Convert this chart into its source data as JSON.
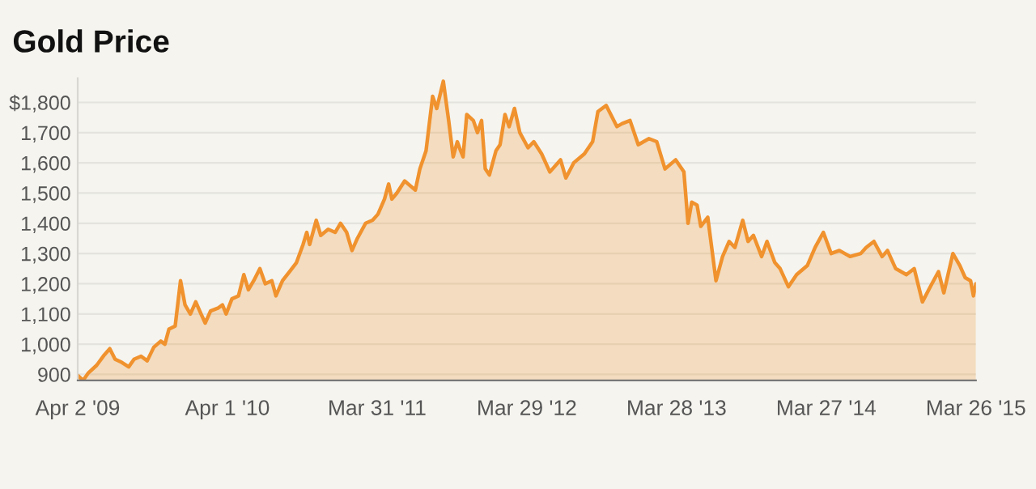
{
  "chart_data": {
    "type": "area",
    "title": "Gold Price",
    "x": [
      "2009-04-02",
      "2009-04-15",
      "2009-04-28",
      "2009-05-18",
      "2009-06-06",
      "2009-06-19",
      "2009-07-02",
      "2009-07-18",
      "2009-08-04",
      "2009-08-17",
      "2009-09-03",
      "2009-09-18",
      "2009-10-04",
      "2009-10-21",
      "2009-10-31",
      "2009-11-10",
      "2009-11-25",
      "2009-12-08",
      "2009-12-19",
      "2010-01-01",
      "2010-01-14",
      "2010-01-27",
      "2010-02-06",
      "2010-02-19",
      "2010-03-10",
      "2010-03-20",
      "2010-03-29",
      "2010-04-12",
      "2010-04-28",
      "2010-05-11",
      "2010-05-22",
      "2010-06-04",
      "2010-06-19",
      "2010-07-02",
      "2010-07-18",
      "2010-07-28",
      "2010-08-13",
      "2010-08-30",
      "2010-09-16",
      "2010-10-02",
      "2010-10-11",
      "2010-10-18",
      "2010-11-03",
      "2010-11-14",
      "2010-12-02",
      "2010-12-19",
      "2011-01-01",
      "2011-01-16",
      "2011-01-29",
      "2011-02-11",
      "2011-03-03",
      "2011-03-20",
      "2011-04-02",
      "2011-04-18",
      "2011-04-28",
      "2011-05-06",
      "2011-05-18",
      "2011-06-06",
      "2011-07-02",
      "2011-07-13",
      "2011-07-28",
      "2011-08-13",
      "2011-08-23",
      "2011-09-08",
      "2011-09-21",
      "2011-10-02",
      "2011-10-12",
      "2011-10-20",
      "2011-10-26",
      "2011-11-04",
      "2011-11-20",
      "2011-11-30",
      "2011-12-10",
      "2011-12-19",
      "2011-12-29",
      "2012-01-14",
      "2012-01-24",
      "2012-02-05",
      "2012-02-15",
      "2012-02-28",
      "2012-03-12",
      "2012-04-01",
      "2012-04-15",
      "2012-05-04",
      "2012-05-24",
      "2012-06-19",
      "2012-07-02",
      "2012-07-21",
      "2012-08-16",
      "2012-09-05",
      "2012-09-18",
      "2012-10-08",
      "2012-11-03",
      "2012-11-16",
      "2012-12-05",
      "2012-12-25",
      "2013-01-20",
      "2013-02-08",
      "2013-02-28",
      "2013-03-26",
      "2013-04-15",
      "2013-04-25",
      "2013-05-04",
      "2013-05-17",
      "2013-05-26",
      "2013-06-12",
      "2013-07-02",
      "2013-07-18",
      "2013-08-03",
      "2013-08-17",
      "2013-09-05",
      "2013-09-18",
      "2013-10-01",
      "2013-10-21",
      "2013-11-03",
      "2013-11-22",
      "2013-12-05",
      "2013-12-25",
      "2014-01-14",
      "2014-02-09",
      "2014-02-28",
      "2014-03-20",
      "2014-04-08",
      "2014-04-28",
      "2014-05-24",
      "2014-06-19",
      "2014-07-02",
      "2014-07-21",
      "2014-08-10",
      "2014-08-23",
      "2014-09-12",
      "2014-10-08",
      "2014-10-27",
      "2014-11-16",
      "2014-12-05",
      "2014-12-25",
      "2015-01-07",
      "2015-01-29",
      "2015-02-15",
      "2015-02-28",
      "2015-03-13",
      "2015-03-20",
      "2015-03-26"
    ],
    "series": [
      {
        "color": "#f0922e",
        "values": [
          897,
          880,
          905,
          930,
          965,
          985,
          950,
          940,
          925,
          950,
          960,
          945,
          990,
          1010,
          1000,
          1050,
          1060,
          1210,
          1130,
          1100,
          1140,
          1100,
          1070,
          1110,
          1120,
          1130,
          1100,
          1150,
          1160,
          1230,
          1180,
          1210,
          1250,
          1200,
          1210,
          1160,
          1210,
          1240,
          1270,
          1330,
          1370,
          1330,
          1410,
          1360,
          1380,
          1370,
          1400,
          1370,
          1310,
          1350,
          1400,
          1410,
          1430,
          1480,
          1530,
          1480,
          1500,
          1540,
          1510,
          1580,
          1640,
          1820,
          1780,
          1870,
          1740,
          1620,
          1670,
          1640,
          1620,
          1760,
          1740,
          1700,
          1740,
          1580,
          1560,
          1640,
          1660,
          1760,
          1720,
          1780,
          1700,
          1650,
          1670,
          1630,
          1570,
          1610,
          1550,
          1600,
          1630,
          1670,
          1770,
          1790,
          1720,
          1730,
          1740,
          1660,
          1680,
          1670,
          1580,
          1610,
          1570,
          1400,
          1470,
          1460,
          1390,
          1420,
          1210,
          1290,
          1340,
          1320,
          1410,
          1340,
          1360,
          1290,
          1340,
          1270,
          1250,
          1190,
          1230,
          1260,
          1320,
          1370,
          1300,
          1310,
          1290,
          1300,
          1320,
          1340,
          1290,
          1310,
          1250,
          1230,
          1250,
          1140,
          1190,
          1240,
          1170,
          1300,
          1260,
          1220,
          1210,
          1160,
          1200
        ]
      }
    ],
    "xlim": [
      "2009-04-02",
      "2015-03-26"
    ],
    "xticks": [
      {
        "value": "2009-04-02",
        "label": "Apr 2 '09"
      },
      {
        "value": "2010-04-01",
        "label": "Apr 1 '10"
      },
      {
        "value": "2011-03-31",
        "label": "Mar 31 '11"
      },
      {
        "value": "2012-03-29",
        "label": "Mar 29 '12"
      },
      {
        "value": "2013-03-28",
        "label": "Mar 28 '13"
      },
      {
        "value": "2014-03-27",
        "label": "Mar 27 '14"
      },
      {
        "value": "2015-03-26",
        "label": "Mar 26 '15"
      }
    ],
    "ylim": [
      880,
      1880
    ],
    "yticks": [
      {
        "value": 900,
        "label": "900"
      },
      {
        "value": 1000,
        "label": "1,000"
      },
      {
        "value": 1100,
        "label": "1,100"
      },
      {
        "value": 1200,
        "label": "1,200"
      },
      {
        "value": 1300,
        "label": "1,300"
      },
      {
        "value": 1400,
        "label": "1,400"
      },
      {
        "value": 1500,
        "label": "1,500"
      },
      {
        "value": 1600,
        "label": "1,600"
      },
      {
        "value": 1700,
        "label": "1,700"
      },
      {
        "value": 1800,
        "label": "$1,800"
      }
    ],
    "grid": "y",
    "line_style": "solid"
  }
}
